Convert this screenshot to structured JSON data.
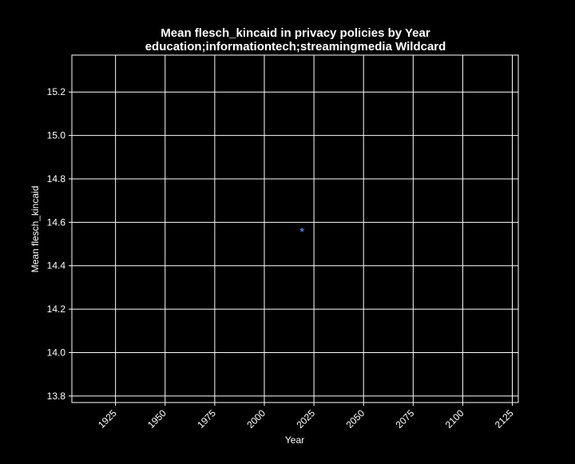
{
  "chart_data": {
    "type": "scatter",
    "title": "Mean flesch_kincaid in privacy policies by Year",
    "subtitle": "education;informationtech;streamingmedia Wildcard",
    "xlabel": "Year",
    "ylabel": "Mean flesch_kincaid",
    "xlim": [
      1903,
      2128
    ],
    "ylim": [
      13.77,
      15.37
    ],
    "xticks": [
      1925,
      1950,
      1975,
      2000,
      2025,
      2050,
      2075,
      2100,
      2125
    ],
    "yticks": [
      13.8,
      14.0,
      14.2,
      14.4,
      14.6,
      14.8,
      15.0,
      15.2
    ],
    "ytick_labels": [
      "13.8",
      "14.0",
      "14.2",
      "14.4",
      "14.6",
      "14.8",
      "15.0",
      "15.2"
    ],
    "grid": true,
    "marker": "star",
    "colors": {
      "background": "#000000",
      "axes": "#ffffff",
      "grid": "#ffffff",
      "point": "#4c78c8"
    },
    "points": [
      {
        "x": 2019,
        "y": 14.565
      }
    ]
  }
}
